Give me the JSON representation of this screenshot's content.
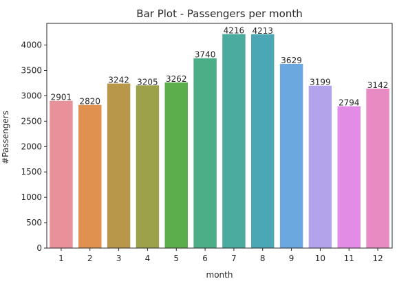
{
  "chart_data": {
    "type": "bar",
    "title": "Bar Plot - Passengers per month",
    "xlabel": "month",
    "ylabel": "#Passengers",
    "categories": [
      "1",
      "2",
      "3",
      "4",
      "5",
      "6",
      "7",
      "8",
      "9",
      "10",
      "11",
      "12"
    ],
    "values": [
      2901,
      2820,
      3242,
      3205,
      3262,
      3740,
      4216,
      4213,
      3629,
      3199,
      2794,
      3142
    ],
    "data_labels": [
      "2901",
      "2820",
      "3242",
      "3205",
      "3262",
      "3740",
      "4216",
      "4213",
      "3629",
      "3199",
      "2794",
      "3142"
    ],
    "ylim": [
      0,
      4427
    ],
    "yticks": [
      0,
      500,
      1000,
      1500,
      2000,
      2500,
      3000,
      3500,
      4000
    ],
    "ytick_labels": [
      "0",
      "500",
      "1000",
      "1500",
      "2000",
      "2500",
      "3000",
      "3500",
      "4000"
    ],
    "colors": [
      "#e8919b",
      "#e0914f",
      "#b8974a",
      "#9ba24a",
      "#5cad4b",
      "#4cae87",
      "#4bab9e",
      "#4ba7b3",
      "#6aa8df",
      "#b3a3ea",
      "#e28ce6",
      "#e88bc3"
    ],
    "grid": false,
    "legend": "none"
  }
}
